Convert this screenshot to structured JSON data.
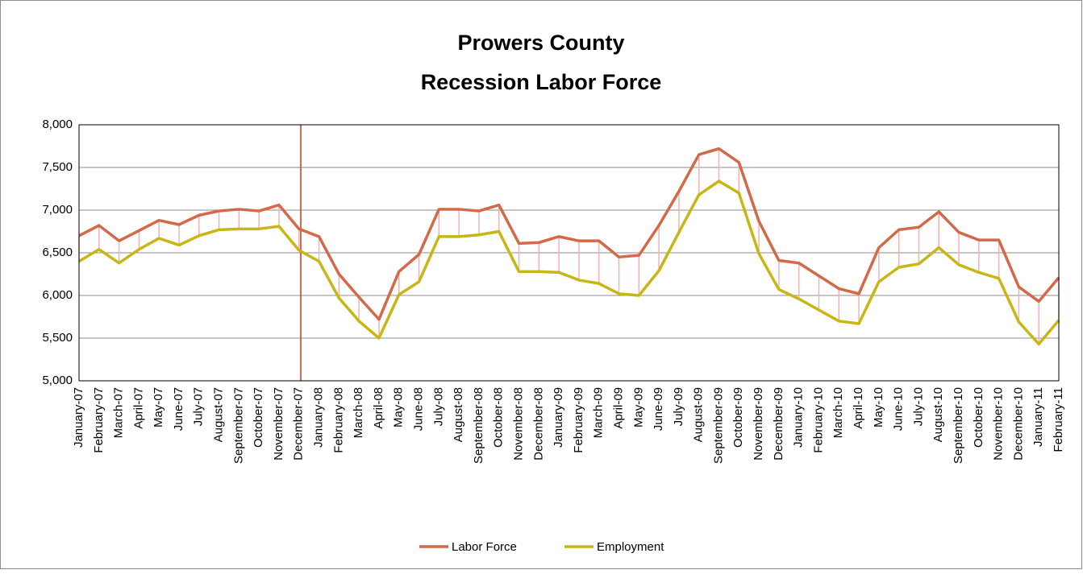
{
  "chart_data": {
    "type": "line",
    "title": [
      "Prowers County",
      "Recession Labor Force"
    ],
    "categories": [
      "January-07",
      "February-07",
      "March-07",
      "April-07",
      "May-07",
      "June-07",
      "July-07",
      "August-07",
      "September-07",
      "October-07",
      "November-07",
      "December-07",
      "January-08",
      "February-08",
      "March-08",
      "April-08",
      "May-08",
      "June-08",
      "July-08",
      "August-08",
      "September-08",
      "October-08",
      "November-08",
      "December-08",
      "January-09",
      "February-09",
      "March-09",
      "April-09",
      "May-09",
      "June-09",
      "July-09",
      "August-09",
      "September-09",
      "October-09",
      "November-09",
      "December-09",
      "January-10",
      "February-10",
      "March-10",
      "April-10",
      "May-10",
      "June-10",
      "July-10",
      "August-10",
      "September-10",
      "October-10",
      "November-10",
      "December-10",
      "January-11",
      "February-11"
    ],
    "series": [
      {
        "name": "Labor Force",
        "color": "#d4694a",
        "values": [
          6700,
          6820,
          6640,
          6760,
          6880,
          6830,
          6940,
          6990,
          7010,
          6990,
          7060,
          6780,
          6690,
          6250,
          5980,
          5720,
          6280,
          6480,
          7010,
          7010,
          6990,
          7060,
          6610,
          6620,
          6690,
          6640,
          6640,
          6450,
          6470,
          6820,
          7220,
          7650,
          7720,
          7560,
          6870,
          6410,
          6380,
          6230,
          6080,
          6020,
          6560,
          6770,
          6800,
          6980,
          6740,
          6650,
          6650,
          6100,
          5930,
          6210
        ]
      },
      {
        "name": "Employment",
        "color": "#c8b614",
        "values": [
          6400,
          6540,
          6380,
          6540,
          6670,
          6590,
          6700,
          6770,
          6780,
          6780,
          6810,
          6530,
          6400,
          5970,
          5700,
          5500,
          6010,
          6160,
          6690,
          6690,
          6710,
          6750,
          6280,
          6280,
          6270,
          6180,
          6140,
          6020,
          6000,
          6290,
          6740,
          7180,
          7340,
          7200,
          6490,
          6070,
          5960,
          5830,
          5700,
          5670,
          6160,
          6330,
          6370,
          6560,
          6360,
          6270,
          6200,
          5690,
          5430,
          5710
        ]
      }
    ],
    "ylim": [
      5000,
      8000
    ],
    "yticks": [
      {
        "value": 5000,
        "label": "5,000"
      },
      {
        "value": 5500,
        "label": "5,500"
      },
      {
        "value": 6000,
        "label": "6,000"
      },
      {
        "value": 6500,
        "label": "6,500"
      },
      {
        "value": 7000,
        "label": "7,000"
      },
      {
        "value": 7500,
        "label": "7,500"
      },
      {
        "value": 8000,
        "label": "8,000"
      }
    ],
    "grid": true,
    "legend": "bottom"
  }
}
